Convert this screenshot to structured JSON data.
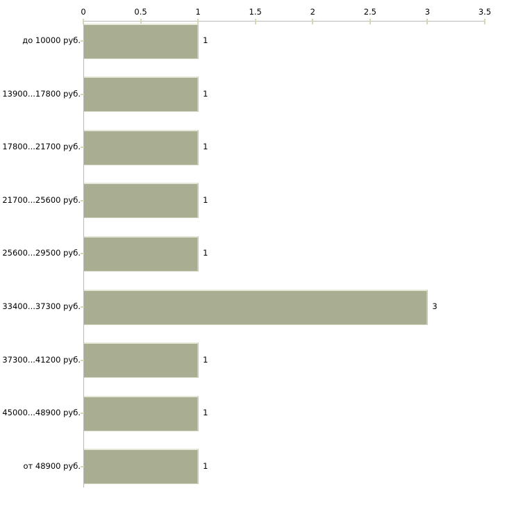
{
  "chart_data": {
    "type": "bar",
    "orientation": "horizontal",
    "title": "",
    "xlabel": "",
    "ylabel": "",
    "categories": [
      "до 10000 руб.",
      "13900...17800 руб.",
      "17800...21700 руб.",
      "21700...25600 руб.",
      "25600...29500 руб.",
      "33400...37300 руб.",
      "37300...41200 руб.",
      "45000...48900 руб.",
      "от 48900 руб."
    ],
    "values": [
      1,
      1,
      1,
      1,
      1,
      3,
      1,
      1,
      1
    ],
    "value_labels": [
      "1",
      "1",
      "1",
      "1",
      "1",
      "3",
      "1",
      "1",
      "1"
    ],
    "xlim": [
      0,
      3.5
    ],
    "x_ticks": [
      0,
      0.5,
      1,
      1.5,
      2,
      2.5,
      3,
      3.5
    ],
    "x_tick_labels": [
      "0",
      "0.5",
      "1",
      "1.5",
      "2",
      "2.5",
      "3",
      "3.5"
    ],
    "axis_position": "top",
    "grid": false,
    "legend": null,
    "colors": {
      "bar_fill": "#a9ae93",
      "bar_highlight": "#e6e7d7",
      "bar_shade": "#c9ccb5",
      "axis_line": "#b8b8b8",
      "tick_mark": "#d6d6b4",
      "text": "#000000",
      "background": "#ffffff"
    }
  }
}
